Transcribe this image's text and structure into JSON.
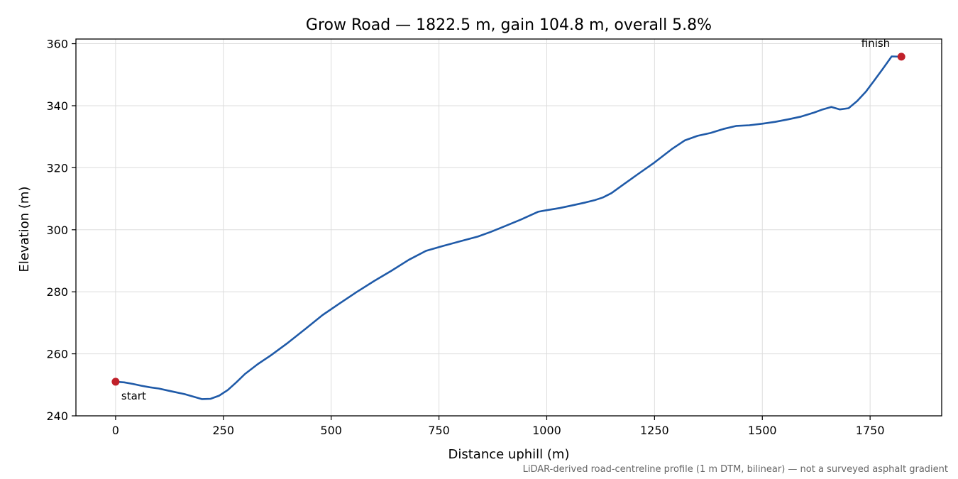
{
  "chart_data": {
    "type": "line",
    "title": "Grow Road — 1822.5 m, gain 104.8 m, overall 5.8%",
    "xlabel": "Distance uphill (m)",
    "ylabel": "Elevation (m)",
    "xlim": [
      -92,
      1916
    ],
    "ylim": [
      240,
      361.5
    ],
    "xticks": [
      0,
      250,
      500,
      750,
      1000,
      1250,
      1500,
      1750
    ],
    "yticks": [
      240,
      260,
      280,
      300,
      320,
      340,
      360
    ],
    "grid": true,
    "colors": {
      "line": "#1f5aa8",
      "marker": "#c0202a"
    },
    "series": [
      {
        "x": [
          0,
          20,
          40,
          60,
          80,
          100,
          120,
          140,
          160,
          180,
          200,
          220,
          240,
          260,
          280,
          300,
          330,
          360,
          400,
          440,
          480,
          520,
          560,
          600,
          640,
          680,
          720,
          760,
          800,
          840,
          870,
          900,
          940,
          980,
          1000,
          1030,
          1060,
          1090,
          1110,
          1130,
          1150,
          1180,
          1210,
          1250,
          1290,
          1320,
          1350,
          1380,
          1410,
          1440,
          1470,
          1500,
          1530,
          1560,
          1590,
          1620,
          1640,
          1660,
          1680,
          1700,
          1720,
          1740,
          1760,
          1780,
          1800,
          1822.5
        ],
        "y": [
          251,
          250.8,
          250.3,
          249.7,
          249.2,
          248.8,
          248.2,
          247.6,
          247,
          246.2,
          245.4,
          245.5,
          246.5,
          248.3,
          250.8,
          253.5,
          256.7,
          259.5,
          263.6,
          268,
          272.5,
          276.3,
          280,
          283.5,
          286.8,
          290.3,
          293.2,
          294.8,
          296.3,
          297.8,
          299.3,
          301,
          303.3,
          305.8,
          306.3,
          307,
          307.9,
          308.8,
          309.5,
          310.4,
          311.8,
          314.8,
          317.8,
          321.7,
          326,
          328.8,
          330.3,
          331.2,
          332.5,
          333.5,
          333.7,
          334.2,
          334.8,
          335.6,
          336.5,
          337.8,
          338.8,
          339.6,
          338.8,
          339.2,
          341.5,
          344.5,
          348.2,
          352,
          355.9,
          355.8
        ]
      }
    ],
    "annotations": [
      {
        "text": "start",
        "x": 0,
        "y": 251
      },
      {
        "text": "finish",
        "x": 1822.5,
        "y": 355.8
      }
    ],
    "footnote": "LiDAR-derived road-centreline profile (1 m DTM, bilinear) — not a surveyed asphalt gradient"
  }
}
